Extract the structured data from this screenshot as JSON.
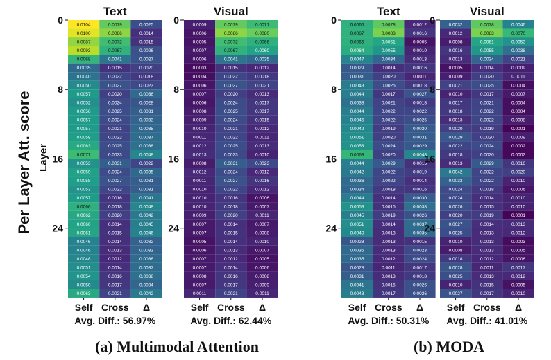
{
  "chart_data": [
    {
      "type": "heatmap",
      "group": "(a) Multimodal Attention",
      "title": "Text",
      "xlabels": [
        "Self",
        "Cross",
        "Δ"
      ],
      "yticks": [
        "0",
        "8",
        "16",
        "24"
      ],
      "footer": "Avg. Diff.: 56.97%",
      "values": [
        [
          "0.0104",
          "0.0079",
          "0.0025"
        ],
        [
          "0.0100",
          "0.0086",
          "0.0014"
        ],
        [
          "0.0087",
          "0.0072",
          "0.0015"
        ],
        [
          "0.0093",
          "0.0067",
          "0.0026"
        ],
        [
          "0.0068",
          "0.0041",
          "0.0027"
        ],
        [
          "0.0035",
          "0.0015",
          "0.0020"
        ],
        [
          "0.0040",
          "0.0022",
          "0.0018"
        ],
        [
          "0.0050",
          "0.0027",
          "0.0023"
        ],
        [
          "0.0057",
          "0.0020",
          "0.0036"
        ],
        [
          "0.0052",
          "0.0024",
          "0.0028"
        ],
        [
          "0.0056",
          "0.0025",
          "0.0031"
        ],
        [
          "0.0057",
          "0.0024",
          "0.0033"
        ],
        [
          "0.0057",
          "0.0021",
          "0.0035"
        ],
        [
          "0.0058",
          "0.0022",
          "0.0037"
        ],
        [
          "0.0063",
          "0.0025",
          "0.0038"
        ],
        [
          "0.0071",
          "0.0023",
          "0.0048"
        ],
        [
          "0.0053",
          "0.0031",
          "0.0022"
        ],
        [
          "0.0059",
          "0.0024",
          "0.0035"
        ],
        [
          "0.0058",
          "0.0027",
          "0.0031"
        ],
        [
          "0.0053",
          "0.0022",
          "0.0031"
        ],
        [
          "0.0057",
          "0.0016",
          "0.0041"
        ],
        [
          "0.0066",
          "0.0018",
          "0.0048"
        ],
        [
          "0.0062",
          "0.0020",
          "0.0042"
        ],
        [
          "0.0060",
          "0.0014",
          "0.0045"
        ],
        [
          "0.0061",
          "0.0015",
          "0.0046"
        ],
        [
          "0.0046",
          "0.0014",
          "0.0032"
        ],
        [
          "0.0046",
          "0.0013",
          "0.0033"
        ],
        [
          "0.0048",
          "0.0012",
          "0.0036"
        ],
        [
          "0.0051",
          "0.0014",
          "0.0037"
        ],
        [
          "0.0054",
          "0.0016",
          "0.0038"
        ],
        [
          "0.0050",
          "0.0017",
          "0.0034"
        ],
        [
          "0.0063",
          "0.0021",
          "0.0042"
        ]
      ]
    },
    {
      "type": "heatmap",
      "group": "(a) Multimodal Attention",
      "title": "Visual",
      "xlabels": [
        "Self",
        "Cross",
        "Δ"
      ],
      "yticks": [
        "0",
        "8",
        "16",
        "24"
      ],
      "footer": "Avg. Diff.: 62.44%",
      "values": [
        [
          "0.0009",
          "0.0079",
          "0.0071"
        ],
        [
          "0.0006",
          "0.0086",
          "0.0080"
        ],
        [
          "0.0005",
          "0.0072",
          "0.0066"
        ],
        [
          "0.0007",
          "0.0067",
          "0.0060"
        ],
        [
          "0.0006",
          "0.0041",
          "0.0035"
        ],
        [
          "0.0003",
          "0.0015",
          "0.0012"
        ],
        [
          "0.0004",
          "0.0022",
          "0.0018"
        ],
        [
          "0.0006",
          "0.0027",
          "0.0021"
        ],
        [
          "0.0007",
          "0.0020",
          "0.0013"
        ],
        [
          "0.0006",
          "0.0024",
          "0.0017"
        ],
        [
          "0.0008",
          "0.0025",
          "0.0017"
        ],
        [
          "0.0009",
          "0.0024",
          "0.0015"
        ],
        [
          "0.0010",
          "0.0021",
          "0.0012"
        ],
        [
          "0.0011",
          "0.0022",
          "0.0011"
        ],
        [
          "0.0012",
          "0.0025",
          "0.0013"
        ],
        [
          "0.0013",
          "0.0023",
          "0.0010"
        ],
        [
          "0.0008",
          "0.0031",
          "0.0023"
        ],
        [
          "0.0012",
          "0.0024",
          "0.0012"
        ],
        [
          "0.0011",
          "0.0027",
          "0.0016"
        ],
        [
          "0.0010",
          "0.0022",
          "0.0012"
        ],
        [
          "0.0010",
          "0.0016",
          "0.0006"
        ],
        [
          "0.0010",
          "0.0018",
          "0.0007"
        ],
        [
          "0.0009",
          "0.0020",
          "0.0011"
        ],
        [
          "0.0007",
          "0.0014",
          "0.0007"
        ],
        [
          "0.0007",
          "0.0015",
          "0.0008"
        ],
        [
          "0.0005",
          "0.0014",
          "0.0010"
        ],
        [
          "0.0006",
          "0.0013",
          "0.0007"
        ],
        [
          "0.0007",
          "0.0012",
          "0.0005"
        ],
        [
          "0.0007",
          "0.0014",
          "0.0006"
        ],
        [
          "0.0008",
          "0.0016",
          "0.0008"
        ],
        [
          "0.0007",
          "0.0017",
          "0.0009"
        ],
        [
          "0.0011",
          "0.0021",
          "0.0011"
        ]
      ]
    },
    {
      "type": "heatmap",
      "group": "(b) MODA",
      "title": "Text",
      "xlabels": [
        "Self",
        "Cross",
        "Δ"
      ],
      "yticks": [
        "0",
        "8",
        "16",
        "24"
      ],
      "footer": "Avg. Diff.: 50.31%",
      "values": [
        [
          "0.0066",
          "0.0078",
          "0.0012"
        ],
        [
          "0.0067",
          "0.0083",
          "0.0016"
        ],
        [
          "0.0066",
          "0.0061",
          "0.0005"
        ],
        [
          "0.0064",
          "0.0055",
          "0.0010"
        ],
        [
          "0.0047",
          "0.0034",
          "0.0013"
        ],
        [
          "0.0029",
          "0.0014",
          "0.0016"
        ],
        [
          "0.0031",
          "0.0020",
          "0.0011"
        ],
        [
          "0.0043",
          "0.0025",
          "0.0018"
        ],
        [
          "0.0044",
          "0.0017",
          "0.0027"
        ],
        [
          "0.0038",
          "0.0021",
          "0.0018"
        ],
        [
          "0.0044",
          "0.0022",
          "0.0022"
        ],
        [
          "0.0046",
          "0.0022",
          "0.0025"
        ],
        [
          "0.0049",
          "0.0019",
          "0.0030"
        ],
        [
          "0.0051",
          "0.0020",
          "0.0031"
        ],
        [
          "0.0053",
          "0.0024",
          "0.0029"
        ],
        [
          "0.0069",
          "0.0020",
          "0.0048"
        ],
        [
          "0.0044",
          "0.0029",
          "0.0015"
        ],
        [
          "0.0042",
          "0.0022",
          "0.0019"
        ],
        [
          "0.0036",
          "0.0022",
          "0.0014"
        ],
        [
          "0.0034",
          "0.0018",
          "0.0016"
        ],
        [
          "0.0044",
          "0.0014",
          "0.0030"
        ],
        [
          "0.0053",
          "0.0015",
          "0.0038"
        ],
        [
          "0.0045",
          "0.0019",
          "0.0026"
        ],
        [
          "0.0051",
          "0.0014",
          "0.0037"
        ],
        [
          "0.0049",
          "0.0013",
          "0.0036"
        ],
        [
          "0.0028",
          "0.0013",
          "0.0015"
        ],
        [
          "0.0035",
          "0.0013",
          "0.0023"
        ],
        [
          "0.0035",
          "0.0012",
          "0.0024"
        ],
        [
          "0.0028",
          "0.0011",
          "0.0017"
        ],
        [
          "0.0031",
          "0.0013",
          "0.0018"
        ],
        [
          "0.0041",
          "0.0015",
          "0.0026"
        ],
        [
          "0.0043",
          "0.0017",
          "0.0026"
        ]
      ]
    },
    {
      "type": "heatmap",
      "group": "(b) MODA",
      "title": "Visual",
      "xlabels": [
        "Self",
        "Cross",
        "Δ"
      ],
      "yticks": [
        "0",
        "8",
        "16",
        "24"
      ],
      "footer": "Avg. Diff.: 41.01%",
      "values": [
        [
          "0.0032",
          "0.0078",
          "0.0046"
        ],
        [
          "0.0012",
          "0.0083",
          "0.0070"
        ],
        [
          "0.0008",
          "0.0061",
          "0.0053"
        ],
        [
          "0.0016",
          "0.0055",
          "0.0038"
        ],
        [
          "0.0013",
          "0.0034",
          "0.0021"
        ],
        [
          "0.0005",
          "0.0014",
          "0.0009"
        ],
        [
          "0.0009",
          "0.0020",
          "0.0011"
        ],
        [
          "0.0021",
          "0.0025",
          "0.0004"
        ],
        [
          "0.0010",
          "0.0017",
          "0.0007"
        ],
        [
          "0.0017",
          "0.0021",
          "0.0004"
        ],
        [
          "0.0018",
          "0.0022",
          "0.0004"
        ],
        [
          "0.0013",
          "0.0022",
          "0.0008"
        ],
        [
          "0.0020",
          "0.0019",
          "0.0001"
        ],
        [
          "0.0029",
          "0.0020",
          "0.0009"
        ],
        [
          "0.0022",
          "0.0024",
          "0.0002"
        ],
        [
          "0.0018",
          "0.0020",
          "0.0002"
        ],
        [
          "0.0013",
          "0.0029",
          "0.0016"
        ],
        [
          "0.0042",
          "0.0022",
          "0.0020"
        ],
        [
          "0.0033",
          "0.0022",
          "0.0010"
        ],
        [
          "0.0024",
          "0.0018",
          "0.0006"
        ],
        [
          "0.0024",
          "0.0014",
          "0.0010"
        ],
        [
          "0.0026",
          "0.0015",
          "0.0010"
        ],
        [
          "0.0020",
          "0.0019",
          "0.0001"
        ],
        [
          "0.0027",
          "0.0014",
          "0.0013"
        ],
        [
          "0.0025",
          "0.0013",
          "0.0012"
        ],
        [
          "0.0010",
          "0.0013",
          "0.0003"
        ],
        [
          "0.0008",
          "0.0013",
          "0.0005"
        ],
        [
          "0.0018",
          "0.0012",
          "0.0006"
        ],
        [
          "0.0028",
          "0.0011",
          "0.0017"
        ],
        [
          "0.0025",
          "0.0013",
          "0.0012"
        ],
        [
          "0.0010",
          "0.0015",
          "0.0005"
        ],
        [
          "0.0027",
          "0.0017",
          "0.0010"
        ]
      ]
    }
  ],
  "ylabel": "Layer",
  "side_label": "Per Layer Att. score",
  "groups": [
    "(a) Multimodal Attention",
    "(b) MODA"
  ],
  "colors": {
    "viridis_stops": [
      "#440154",
      "#482878",
      "#3e4989",
      "#31688e",
      "#26828e",
      "#1f9e89",
      "#35b779",
      "#6ece58",
      "#b5de2b",
      "#fde725"
    ],
    "text_dark": "#111111",
    "text_light": "#ffffff"
  }
}
